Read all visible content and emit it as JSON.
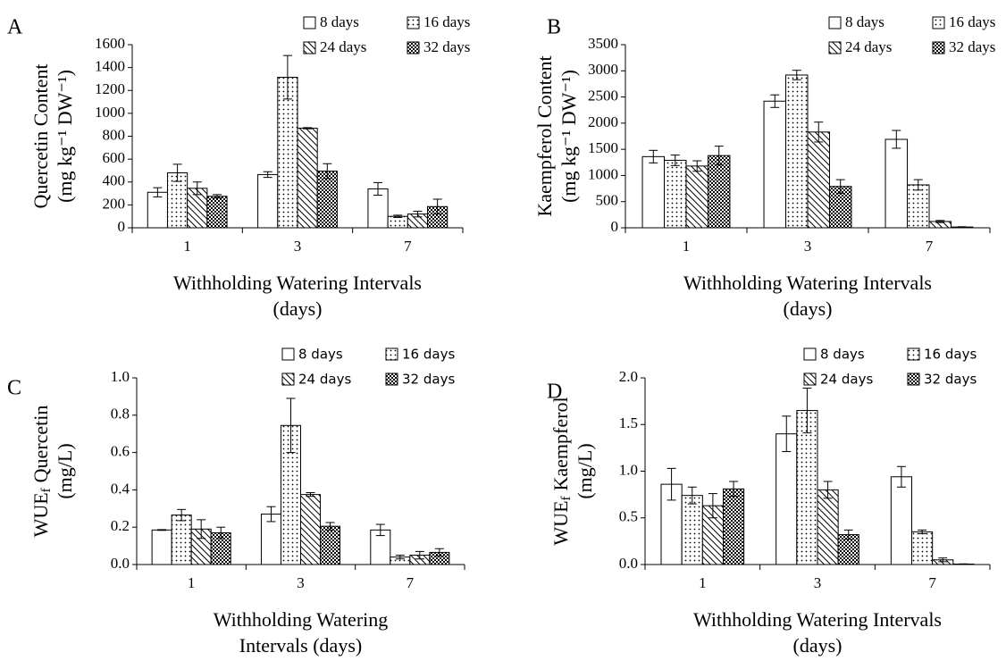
{
  "chart_data": [
    {
      "type": "bar",
      "panel": "A",
      "ylabel": {
        "main": "Quercetin Content",
        "sub": null,
        "rest": null,
        "line2": "(mg kg⁻¹ DW⁻¹)"
      },
      "xlabel": [
        "Withholding Watering Intervals",
        "(days)"
      ],
      "categories": [
        "1",
        "3",
        "7"
      ],
      "ylim": [
        0,
        1600
      ],
      "yticks": [
        0,
        200,
        400,
        600,
        800,
        1000,
        1200,
        1400,
        1600
      ],
      "series": [
        {
          "name": "8 days",
          "color": "#000000",
          "pattern": "none",
          "values": [
            310,
            465,
            340
          ],
          "errors": [
            40,
            25,
            55
          ]
        },
        {
          "name": "16 days",
          "color": "#000000",
          "pattern": "dots",
          "values": [
            480,
            1315,
            100
          ],
          "errors": [
            75,
            190,
            10
          ]
        },
        {
          "name": "24 days",
          "color": "#000000",
          "pattern": "hatch",
          "values": [
            345,
            870,
            120
          ],
          "errors": [
            55,
            5,
            25
          ]
        },
        {
          "name": "32 days",
          "color": "#000000",
          "pattern": "checker",
          "values": [
            275,
            495,
            185
          ],
          "errors": [
            15,
            65,
            65
          ]
        }
      ]
    },
    {
      "type": "bar",
      "panel": "B",
      "ylabel": {
        "main": "Kaempferol Content",
        "sub": null,
        "rest": null,
        "line2": "(mg kg⁻¹ DW⁻¹)"
      },
      "xlabel": [
        "Withholding Watering Intervals",
        "(days)"
      ],
      "categories": [
        "1",
        "3",
        "7"
      ],
      "ylim": [
        0,
        3500
      ],
      "yticks": [
        0,
        500,
        1000,
        1500,
        2000,
        2500,
        3000,
        3500
      ],
      "series": [
        {
          "name": "8 days",
          "color": "#000000",
          "pattern": "none",
          "values": [
            1360,
            2420,
            1690
          ],
          "errors": [
            120,
            120,
            170
          ]
        },
        {
          "name": "16 days",
          "color": "#000000",
          "pattern": "dots",
          "values": [
            1290,
            2920,
            820
          ],
          "errors": [
            100,
            90,
            100
          ]
        },
        {
          "name": "24 days",
          "color": "#000000",
          "pattern": "hatch",
          "values": [
            1180,
            1830,
            120
          ],
          "errors": [
            100,
            190,
            20
          ]
        },
        {
          "name": "32 days",
          "color": "#000000",
          "pattern": "checker",
          "values": [
            1380,
            790,
            15
          ],
          "errors": [
            180,
            130,
            5
          ]
        }
      ]
    },
    {
      "type": "bar",
      "panel": "C",
      "ylabel": {
        "main": "WUE",
        "sub": "f",
        "rest": "Quercetin",
        "line2": "(mg/L)"
      },
      "xlabel": [
        "Withholding Watering",
        "Intervals (days)"
      ],
      "categories": [
        "1",
        "3",
        "7"
      ],
      "ylim": [
        0,
        1.0
      ],
      "yticks": [
        {
          "value": 0,
          "label": "0.0"
        },
        0.2,
        0.4,
        0.6,
        0.8,
        {
          "value": 1.0,
          "label": "1.0"
        }
      ],
      "series": [
        {
          "name": "8 days",
          "color": "#000000",
          "pattern": "none",
          "values": [
            0.185,
            0.27,
            0.185
          ],
          "errors": [
            0.002,
            0.04,
            0.03
          ]
        },
        {
          "name": "16 days",
          "color": "#000000",
          "pattern": "dots",
          "values": [
            0.265,
            0.745,
            0.04
          ],
          "errors": [
            0.03,
            0.145,
            0.01
          ]
        },
        {
          "name": "24 days",
          "color": "#000000",
          "pattern": "hatch",
          "values": [
            0.19,
            0.375,
            0.05
          ],
          "errors": [
            0.05,
            0.01,
            0.02
          ]
        },
        {
          "name": "32 days",
          "color": "#000000",
          "pattern": "checker",
          "values": [
            0.17,
            0.205,
            0.065
          ],
          "errors": [
            0.03,
            0.02,
            0.02
          ]
        }
      ]
    },
    {
      "type": "bar",
      "panel": "D",
      "ylabel": {
        "main": "WUE",
        "sub": "f",
        "rest": "Kaempferol",
        "line2": "(mg/L)"
      },
      "xlabel": [
        "Withholding Watering Intervals",
        "(days)"
      ],
      "categories": [
        "1",
        "3",
        "7"
      ],
      "ylim": [
        0,
        2.0
      ],
      "yticks": [
        {
          "value": 0,
          "label": "0.0"
        },
        0.5,
        {
          "value": 1.0,
          "label": "1.0"
        },
        1.5,
        {
          "value": 2.0,
          "label": "2.0"
        }
      ],
      "series": [
        {
          "name": "8 days",
          "color": "#000000",
          "pattern": "none",
          "values": [
            0.86,
            1.4,
            0.94
          ],
          "errors": [
            0.17,
            0.19,
            0.11
          ]
        },
        {
          "name": "16 days",
          "color": "#000000",
          "pattern": "dots",
          "values": [
            0.74,
            1.65,
            0.35
          ],
          "errors": [
            0.09,
            0.24,
            0.02
          ]
        },
        {
          "name": "24 days",
          "color": "#000000",
          "pattern": "hatch",
          "values": [
            0.63,
            0.8,
            0.05
          ],
          "errors": [
            0.13,
            0.09,
            0.02
          ]
        },
        {
          "name": "32 days",
          "color": "#000000",
          "pattern": "checker",
          "values": [
            0.81,
            0.32,
            0.005
          ],
          "errors": [
            0.08,
            0.05,
            0.002
          ]
        }
      ]
    }
  ]
}
